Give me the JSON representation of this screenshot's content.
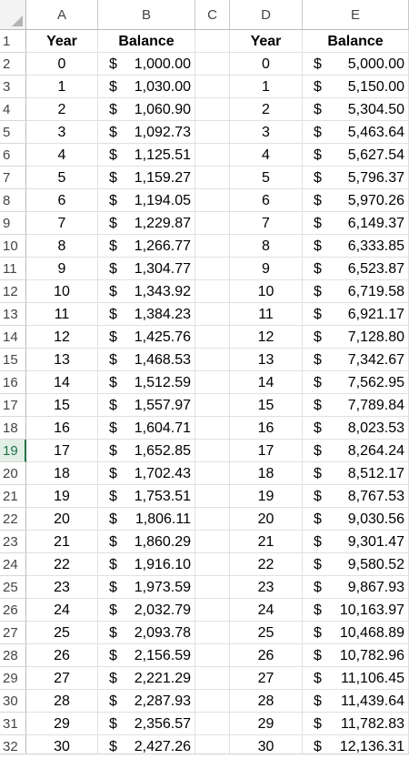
{
  "columns": [
    "A",
    "B",
    "C",
    "D",
    "E"
  ],
  "headers": {
    "A": "Year",
    "B": "Balance",
    "D": "Year",
    "E": "Balance"
  },
  "active_row": 19,
  "rows": [
    {
      "r": "2",
      "a": "0",
      "b_cur": "$",
      "b_amt": "1,000.00",
      "d": "0",
      "e_cur": "$",
      "e_amt": "5,000.00"
    },
    {
      "r": "3",
      "a": "1",
      "b_cur": "$",
      "b_amt": "1,030.00",
      "d": "1",
      "e_cur": "$",
      "e_amt": "5,150.00"
    },
    {
      "r": "4",
      "a": "2",
      "b_cur": "$",
      "b_amt": "1,060.90",
      "d": "2",
      "e_cur": "$",
      "e_amt": "5,304.50"
    },
    {
      "r": "5",
      "a": "3",
      "b_cur": "$",
      "b_amt": "1,092.73",
      "d": "3",
      "e_cur": "$",
      "e_amt": "5,463.64"
    },
    {
      "r": "6",
      "a": "4",
      "b_cur": "$",
      "b_amt": "1,125.51",
      "d": "4",
      "e_cur": "$",
      "e_amt": "5,627.54"
    },
    {
      "r": "7",
      "a": "5",
      "b_cur": "$",
      "b_amt": "1,159.27",
      "d": "5",
      "e_cur": "$",
      "e_amt": "5,796.37"
    },
    {
      "r": "8",
      "a": "6",
      "b_cur": "$",
      "b_amt": "1,194.05",
      "d": "6",
      "e_cur": "$",
      "e_amt": "5,970.26"
    },
    {
      "r": "9",
      "a": "7",
      "b_cur": "$",
      "b_amt": "1,229.87",
      "d": "7",
      "e_cur": "$",
      "e_amt": "6,149.37"
    },
    {
      "r": "10",
      "a": "8",
      "b_cur": "$",
      "b_amt": "1,266.77",
      "d": "8",
      "e_cur": "$",
      "e_amt": "6,333.85"
    },
    {
      "r": "11",
      "a": "9",
      "b_cur": "$",
      "b_amt": "1,304.77",
      "d": "9",
      "e_cur": "$",
      "e_amt": "6,523.87"
    },
    {
      "r": "12",
      "a": "10",
      "b_cur": "$",
      "b_amt": "1,343.92",
      "d": "10",
      "e_cur": "$",
      "e_amt": "6,719.58"
    },
    {
      "r": "13",
      "a": "11",
      "b_cur": "$",
      "b_amt": "1,384.23",
      "d": "11",
      "e_cur": "$",
      "e_amt": "6,921.17"
    },
    {
      "r": "14",
      "a": "12",
      "b_cur": "$",
      "b_amt": "1,425.76",
      "d": "12",
      "e_cur": "$",
      "e_amt": "7,128.80"
    },
    {
      "r": "15",
      "a": "13",
      "b_cur": "$",
      "b_amt": "1,468.53",
      "d": "13",
      "e_cur": "$",
      "e_amt": "7,342.67"
    },
    {
      "r": "16",
      "a": "14",
      "b_cur": "$",
      "b_amt": "1,512.59",
      "d": "14",
      "e_cur": "$",
      "e_amt": "7,562.95"
    },
    {
      "r": "17",
      "a": "15",
      "b_cur": "$",
      "b_amt": "1,557.97",
      "d": "15",
      "e_cur": "$",
      "e_amt": "7,789.84"
    },
    {
      "r": "18",
      "a": "16",
      "b_cur": "$",
      "b_amt": "1,604.71",
      "d": "16",
      "e_cur": "$",
      "e_amt": "8,023.53"
    },
    {
      "r": "19",
      "a": "17",
      "b_cur": "$",
      "b_amt": "1,652.85",
      "d": "17",
      "e_cur": "$",
      "e_amt": "8,264.24"
    },
    {
      "r": "20",
      "a": "18",
      "b_cur": "$",
      "b_amt": "1,702.43",
      "d": "18",
      "e_cur": "$",
      "e_amt": "8,512.17"
    },
    {
      "r": "21",
      "a": "19",
      "b_cur": "$",
      "b_amt": "1,753.51",
      "d": "19",
      "e_cur": "$",
      "e_amt": "8,767.53"
    },
    {
      "r": "22",
      "a": "20",
      "b_cur": "$",
      "b_amt": "1,806.11",
      "d": "20",
      "e_cur": "$",
      "e_amt": "9,030.56"
    },
    {
      "r": "23",
      "a": "21",
      "b_cur": "$",
      "b_amt": "1,860.29",
      "d": "21",
      "e_cur": "$",
      "e_amt": "9,301.47"
    },
    {
      "r": "24",
      "a": "22",
      "b_cur": "$",
      "b_amt": "1,916.10",
      "d": "22",
      "e_cur": "$",
      "e_amt": "9,580.52"
    },
    {
      "r": "25",
      "a": "23",
      "b_cur": "$",
      "b_amt": "1,973.59",
      "d": "23",
      "e_cur": "$",
      "e_amt": "9,867.93"
    },
    {
      "r": "26",
      "a": "24",
      "b_cur": "$",
      "b_amt": "2,032.79",
      "d": "24",
      "e_cur": "$",
      "e_amt": "10,163.97"
    },
    {
      "r": "27",
      "a": "25",
      "b_cur": "$",
      "b_amt": "2,093.78",
      "d": "25",
      "e_cur": "$",
      "e_amt": "10,468.89"
    },
    {
      "r": "28",
      "a": "26",
      "b_cur": "$",
      "b_amt": "2,156.59",
      "d": "26",
      "e_cur": "$",
      "e_amt": "10,782.96"
    },
    {
      "r": "29",
      "a": "27",
      "b_cur": "$",
      "b_amt": "2,221.29",
      "d": "27",
      "e_cur": "$",
      "e_amt": "11,106.45"
    },
    {
      "r": "30",
      "a": "28",
      "b_cur": "$",
      "b_amt": "2,287.93",
      "d": "28",
      "e_cur": "$",
      "e_amt": "11,439.64"
    },
    {
      "r": "31",
      "a": "29",
      "b_cur": "$",
      "b_amt": "2,356.57",
      "d": "29",
      "e_cur": "$",
      "e_amt": "11,782.83"
    },
    {
      "r": "32",
      "a": "30",
      "b_cur": "$",
      "b_amt": "2,427.26",
      "d": "30",
      "e_cur": "$",
      "e_amt": "12,136.31"
    }
  ],
  "header_row_number": "1",
  "colors": {
    "active_row_accent": "#217346",
    "gridline": "#e0e0e0",
    "header_text": "#444444"
  }
}
